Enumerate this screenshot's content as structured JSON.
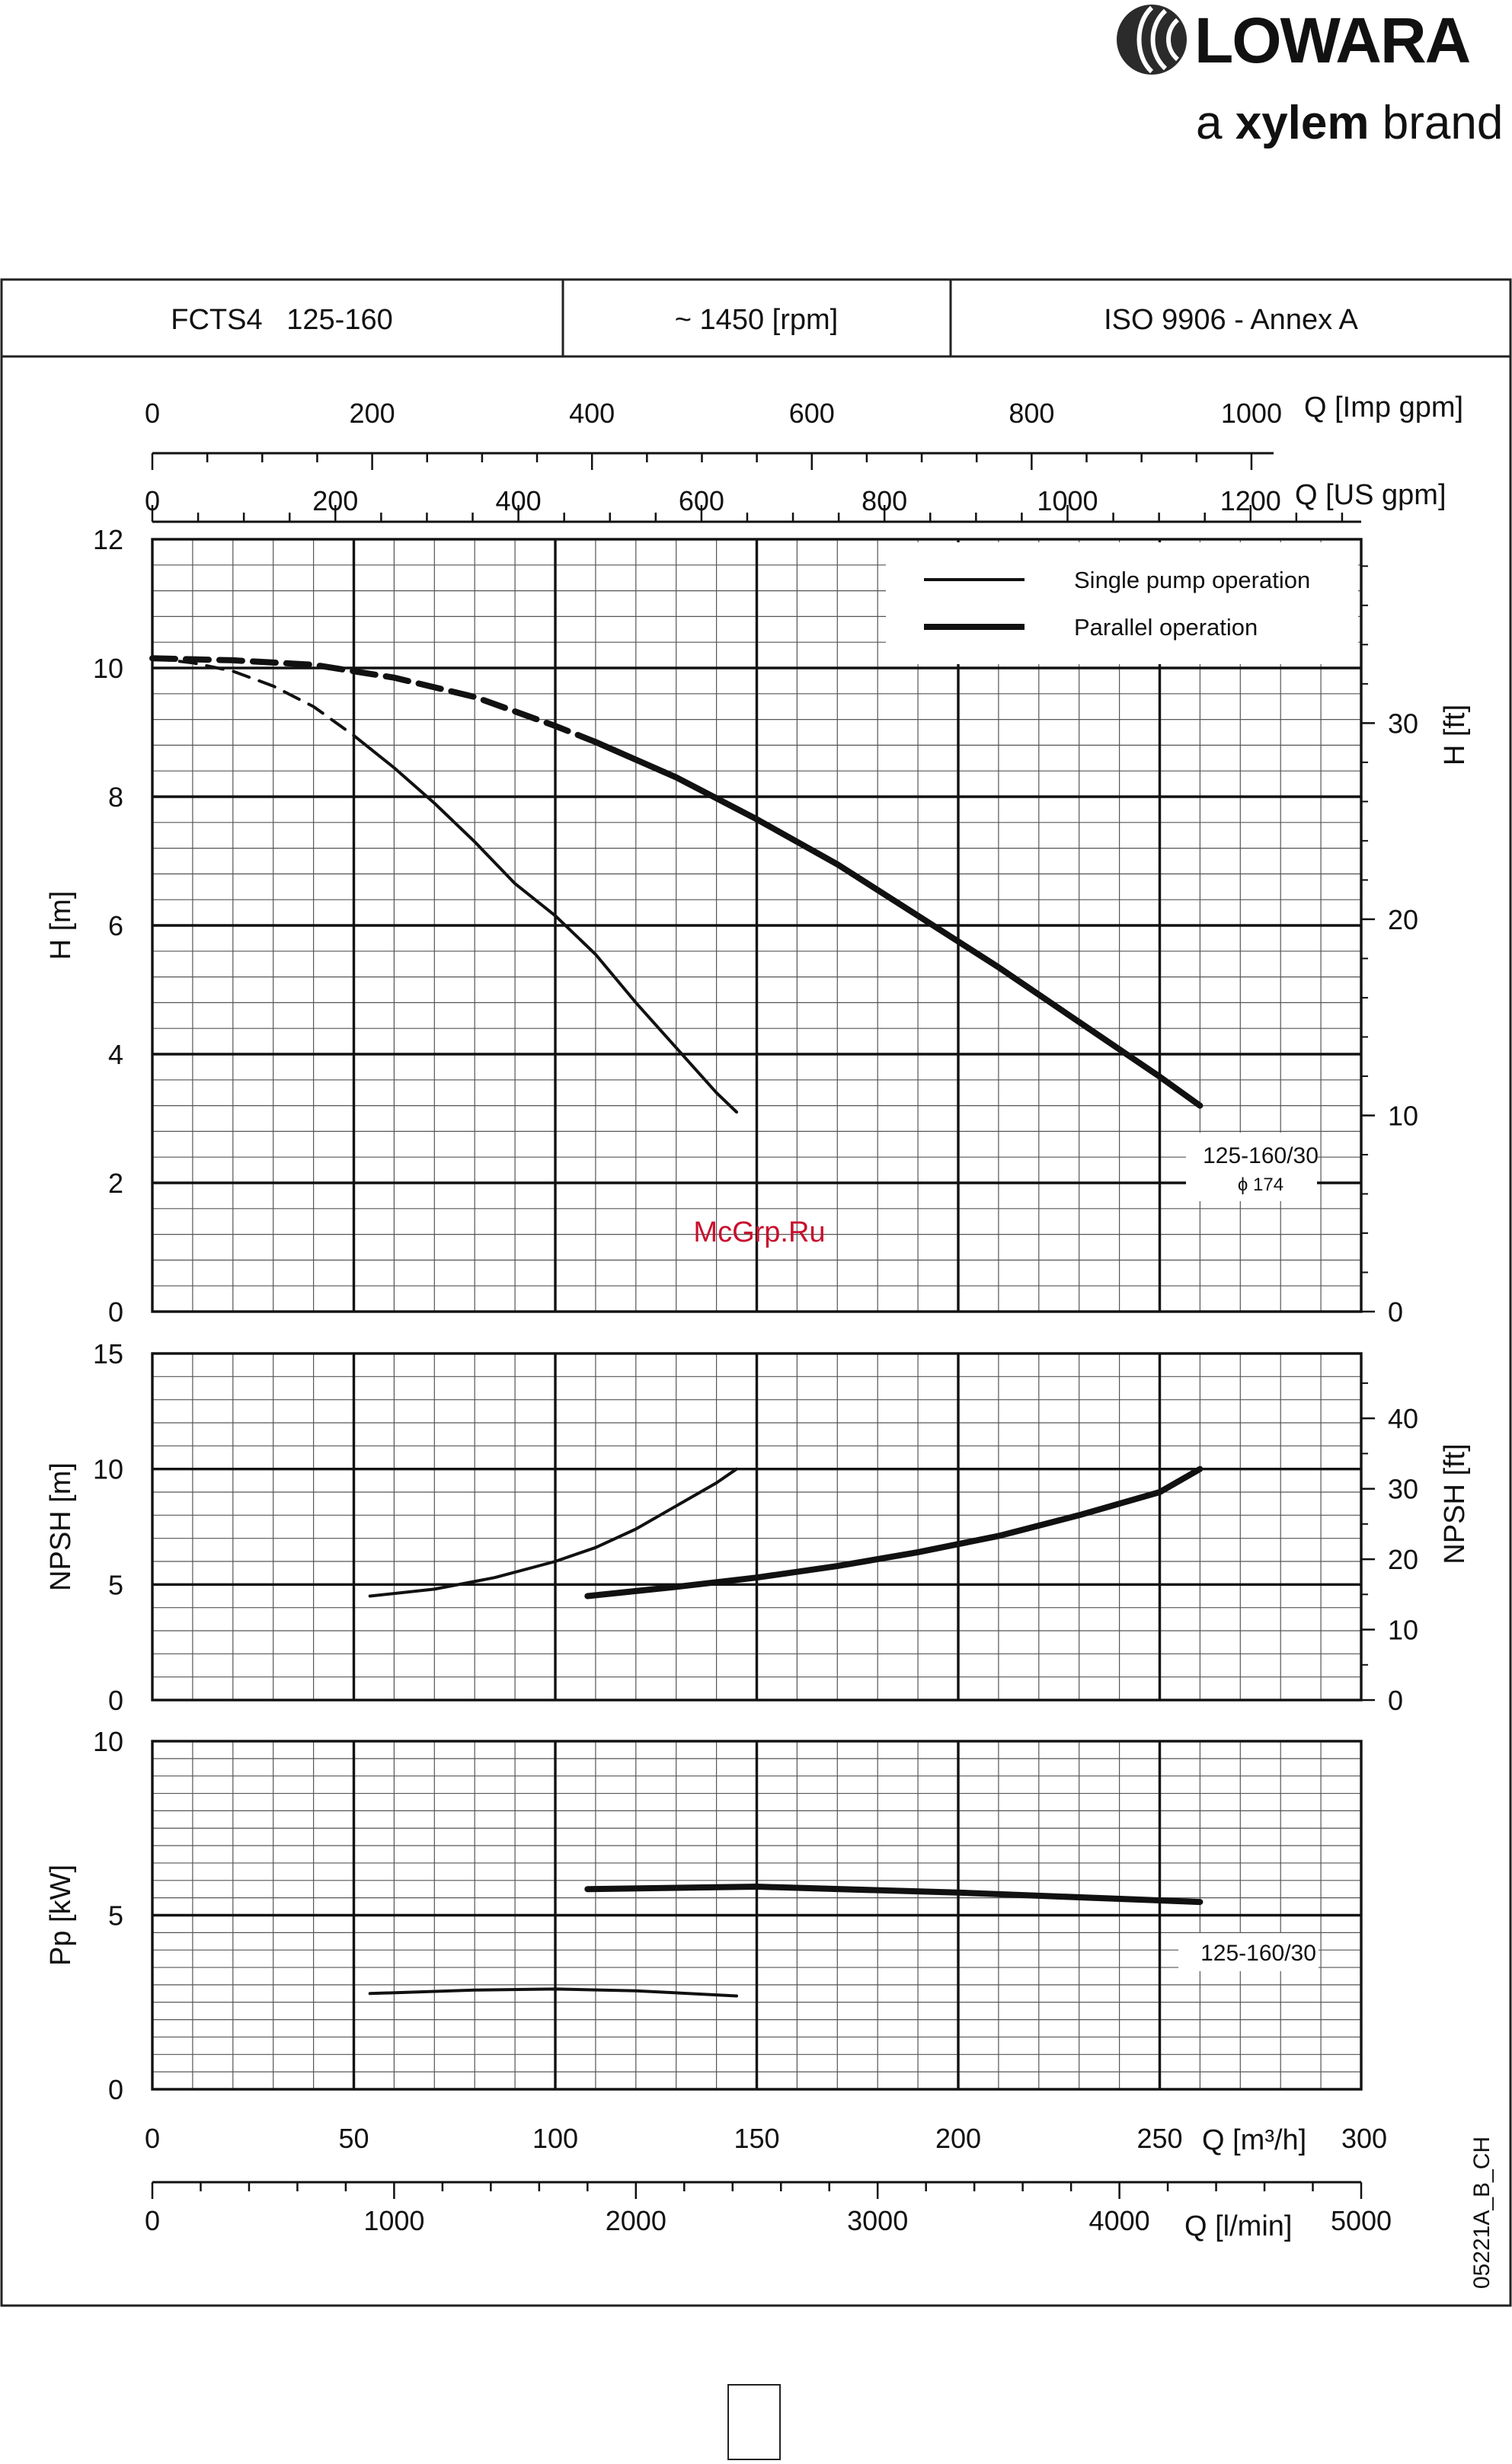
{
  "brand": {
    "name": "LOWARA",
    "tagline_a": "a ",
    "tagline_xylem": "xylem",
    "tagline_brand": " brand"
  },
  "header": {
    "model": "FCTS4   125-160",
    "speed": "~ 1450 [rpm]",
    "standard": "ISO 9906 - Annex A"
  },
  "watermark": "McGrp.Ru",
  "code": "05221A_B_CH",
  "chart_data": [
    {
      "type": "line",
      "panel": "head",
      "xlabel": "Q [m³/h]",
      "ylabel": "H [m]",
      "y2label": "H [ft]",
      "xlim": [
        0,
        300
      ],
      "ylim": [
        0,
        12
      ],
      "y2lim": [
        0,
        39.37
      ],
      "xticks": [
        0,
        50,
        100,
        150,
        200,
        250,
        300
      ],
      "yticks": [
        0,
        2,
        4,
        6,
        8,
        10,
        12
      ],
      "y2ticks": [
        0,
        10,
        20,
        30
      ],
      "top_axes": [
        {
          "label": "Q [Imp gpm]",
          "ticks": [
            0,
            200,
            400,
            600,
            800,
            1000
          ],
          "factor": 3.6661
        },
        {
          "label": "Q [US gpm]",
          "ticks": [
            0,
            200,
            400,
            600,
            800,
            1000,
            1200
          ],
          "factor": 4.4029
        }
      ],
      "legend": {
        "position": "top-right",
        "entries": [
          "Single pump operation",
          "Parallel operation"
        ]
      },
      "annotation": {
        "text": "125-160/30",
        "subtext": "ϕ 174"
      },
      "series": [
        {
          "name": "Single pump operation",
          "style": "thin",
          "dashed_until": 50,
          "x": [
            0,
            10,
            20,
            30,
            40,
            50,
            60,
            70,
            80,
            90,
            100,
            110,
            120,
            130,
            140,
            145
          ],
          "y": [
            10.15,
            10.08,
            9.95,
            9.72,
            9.4,
            8.95,
            8.45,
            7.9,
            7.3,
            6.65,
            6.15,
            5.55,
            4.8,
            4.1,
            3.4,
            3.1
          ]
        },
        {
          "name": "Parallel operation",
          "style": "thick",
          "dashed_until": 108,
          "x": [
            0,
            20,
            40,
            60,
            80,
            100,
            110,
            130,
            150,
            170,
            190,
            210,
            230,
            250,
            260
          ],
          "y": [
            10.15,
            10.12,
            10.05,
            9.85,
            9.55,
            9.1,
            8.85,
            8.3,
            7.65,
            6.95,
            6.15,
            5.35,
            4.5,
            3.65,
            3.2
          ]
        }
      ]
    },
    {
      "type": "line",
      "panel": "npsh",
      "ylabel": "NPSH [m]",
      "y2label": "NPSH [ft]",
      "xlim": [
        0,
        300
      ],
      "ylim": [
        0,
        15
      ],
      "y2lim": [
        0,
        49.21
      ],
      "yticks": [
        0,
        5,
        10,
        15
      ],
      "y2ticks": [
        0,
        10,
        20,
        30,
        40
      ],
      "series": [
        {
          "name": "Single pump operation",
          "style": "thin",
          "x": [
            54,
            70,
            85,
            100,
            110,
            120,
            130,
            140,
            145
          ],
          "y": [
            4.5,
            4.8,
            5.3,
            6.0,
            6.6,
            7.4,
            8.4,
            9.4,
            10.0
          ]
        },
        {
          "name": "Parallel operation",
          "style": "thick",
          "x": [
            108,
            130,
            150,
            170,
            190,
            210,
            230,
            250,
            260
          ],
          "y": [
            4.5,
            4.9,
            5.3,
            5.8,
            6.4,
            7.1,
            8.0,
            9.0,
            10.0
          ]
        }
      ]
    },
    {
      "type": "line",
      "panel": "power",
      "ylabel": "Pp [kW]",
      "xlabel": "Q [m³/h]",
      "xlim": [
        0,
        300
      ],
      "ylim": [
        0,
        10
      ],
      "yticks": [
        0,
        5,
        10
      ],
      "xticks": [
        0,
        50,
        100,
        150,
        200,
        250,
        300
      ],
      "bottom_axis": {
        "label": "Q [l/min]",
        "ticks": [
          0,
          1000,
          2000,
          3000,
          4000,
          5000
        ],
        "factor": 16.6667
      },
      "annotation": {
        "text": "125-160/30"
      },
      "series": [
        {
          "name": "Single pump operation",
          "style": "thin",
          "x": [
            54,
            80,
            100,
            120,
            145
          ],
          "y": [
            2.75,
            2.85,
            2.88,
            2.83,
            2.68
          ]
        },
        {
          "name": "Parallel operation",
          "style": "thick",
          "x": [
            108,
            150,
            200,
            260
          ],
          "y": [
            5.75,
            5.82,
            5.65,
            5.38
          ]
        }
      ]
    }
  ]
}
